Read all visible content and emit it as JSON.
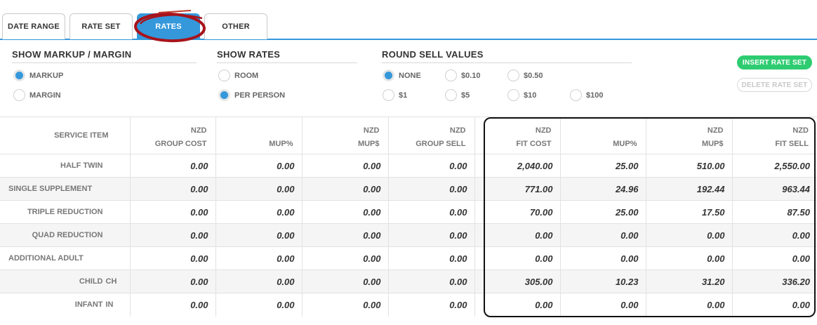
{
  "tabs": [
    {
      "label": "DATE RANGE",
      "active": false
    },
    {
      "label": "RATE SET",
      "active": false
    },
    {
      "label": "RATES",
      "active": true
    },
    {
      "label": "OTHER",
      "active": false
    }
  ],
  "options": {
    "markup": {
      "title": "SHOW MARKUP / MARGIN",
      "items": [
        {
          "label": "MARKUP",
          "selected": true
        },
        {
          "label": "MARGIN",
          "selected": false
        }
      ]
    },
    "rates": {
      "title": "SHOW RATES",
      "items": [
        {
          "label": "ROOM",
          "selected": false
        },
        {
          "label": "PER PERSON",
          "selected": true
        }
      ]
    },
    "round": {
      "title": "ROUND SELL VALUES",
      "items": [
        {
          "label": "NONE",
          "selected": true
        },
        {
          "label": "$0.10",
          "selected": false
        },
        {
          "label": "$0.50",
          "selected": false
        },
        {
          "label": "$1",
          "selected": false
        },
        {
          "label": "$5",
          "selected": false
        },
        {
          "label": "$10",
          "selected": false
        },
        {
          "label": "$100",
          "selected": false
        }
      ]
    }
  },
  "buttons": {
    "insert": "INSERT RATE SET",
    "delete": "DELETE RATE SET"
  },
  "table": {
    "headers": [
      {
        "top": "",
        "bottom": "SERVICE ITEM"
      },
      {
        "top": "NZD",
        "bottom": "GROUP COST"
      },
      {
        "top": "",
        "bottom": "MUP%"
      },
      {
        "top": "NZD",
        "bottom": "MUP$"
      },
      {
        "top": "NZD",
        "bottom": "GROUP SELL"
      },
      {
        "top": "NZD",
        "bottom": "FIT COST"
      },
      {
        "top": "",
        "bottom": "MUP%"
      },
      {
        "top": "NZD",
        "bottom": "MUP$"
      },
      {
        "top": "NZD",
        "bottom": "FIT SELL"
      }
    ],
    "rows": [
      {
        "label": "HALF TWIN",
        "code": "",
        "values": [
          "0.00",
          "0.00",
          "0.00",
          "0.00",
          "2,040.00",
          "25.00",
          "510.00",
          "2,550.00"
        ]
      },
      {
        "label": "SINGLE SUPPLEMENT",
        "code": "",
        "values": [
          "0.00",
          "0.00",
          "0.00",
          "0.00",
          "771.00",
          "24.96",
          "192.44",
          "963.44"
        ]
      },
      {
        "label": "TRIPLE REDUCTION",
        "code": "",
        "values": [
          "0.00",
          "0.00",
          "0.00",
          "0.00",
          "70.00",
          "25.00",
          "17.50",
          "87.50"
        ]
      },
      {
        "label": "QUAD REDUCTION",
        "code": "",
        "values": [
          "0.00",
          "0.00",
          "0.00",
          "0.00",
          "0.00",
          "0.00",
          "0.00",
          "0.00"
        ]
      },
      {
        "label": "ADDITIONAL ADULT",
        "code": "",
        "values": [
          "0.00",
          "0.00",
          "0.00",
          "0.00",
          "0.00",
          "0.00",
          "0.00",
          "0.00"
        ]
      },
      {
        "label": "CHILD",
        "code": "CH",
        "values": [
          "0.00",
          "0.00",
          "0.00",
          "0.00",
          "305.00",
          "10.23",
          "31.20",
          "336.20"
        ]
      },
      {
        "label": "INFANT",
        "code": "IN",
        "values": [
          "0.00",
          "0.00",
          "0.00",
          "0.00",
          "0.00",
          "0.00",
          "0.00",
          "0.00"
        ]
      }
    ]
  },
  "colors": {
    "accent": "#3498db",
    "green": "#2ecc71",
    "annotation": "#a8141b"
  }
}
